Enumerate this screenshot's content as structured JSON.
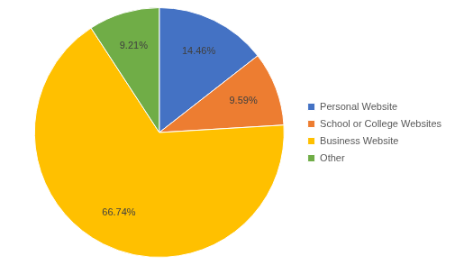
{
  "chart_data": {
    "type": "pie",
    "categories": [
      "Personal Website",
      "School or College Websites",
      "Business Website",
      "Other"
    ],
    "values": [
      14.46,
      9.59,
      66.74,
      9.21
    ],
    "value_labels": [
      "14.46%",
      "9.59%",
      "66.74%",
      "9.21%"
    ],
    "colors": [
      "#4472c4",
      "#ed7d31",
      "#ffc000",
      "#70ad47"
    ],
    "legend": "right",
    "data_labels": true
  }
}
